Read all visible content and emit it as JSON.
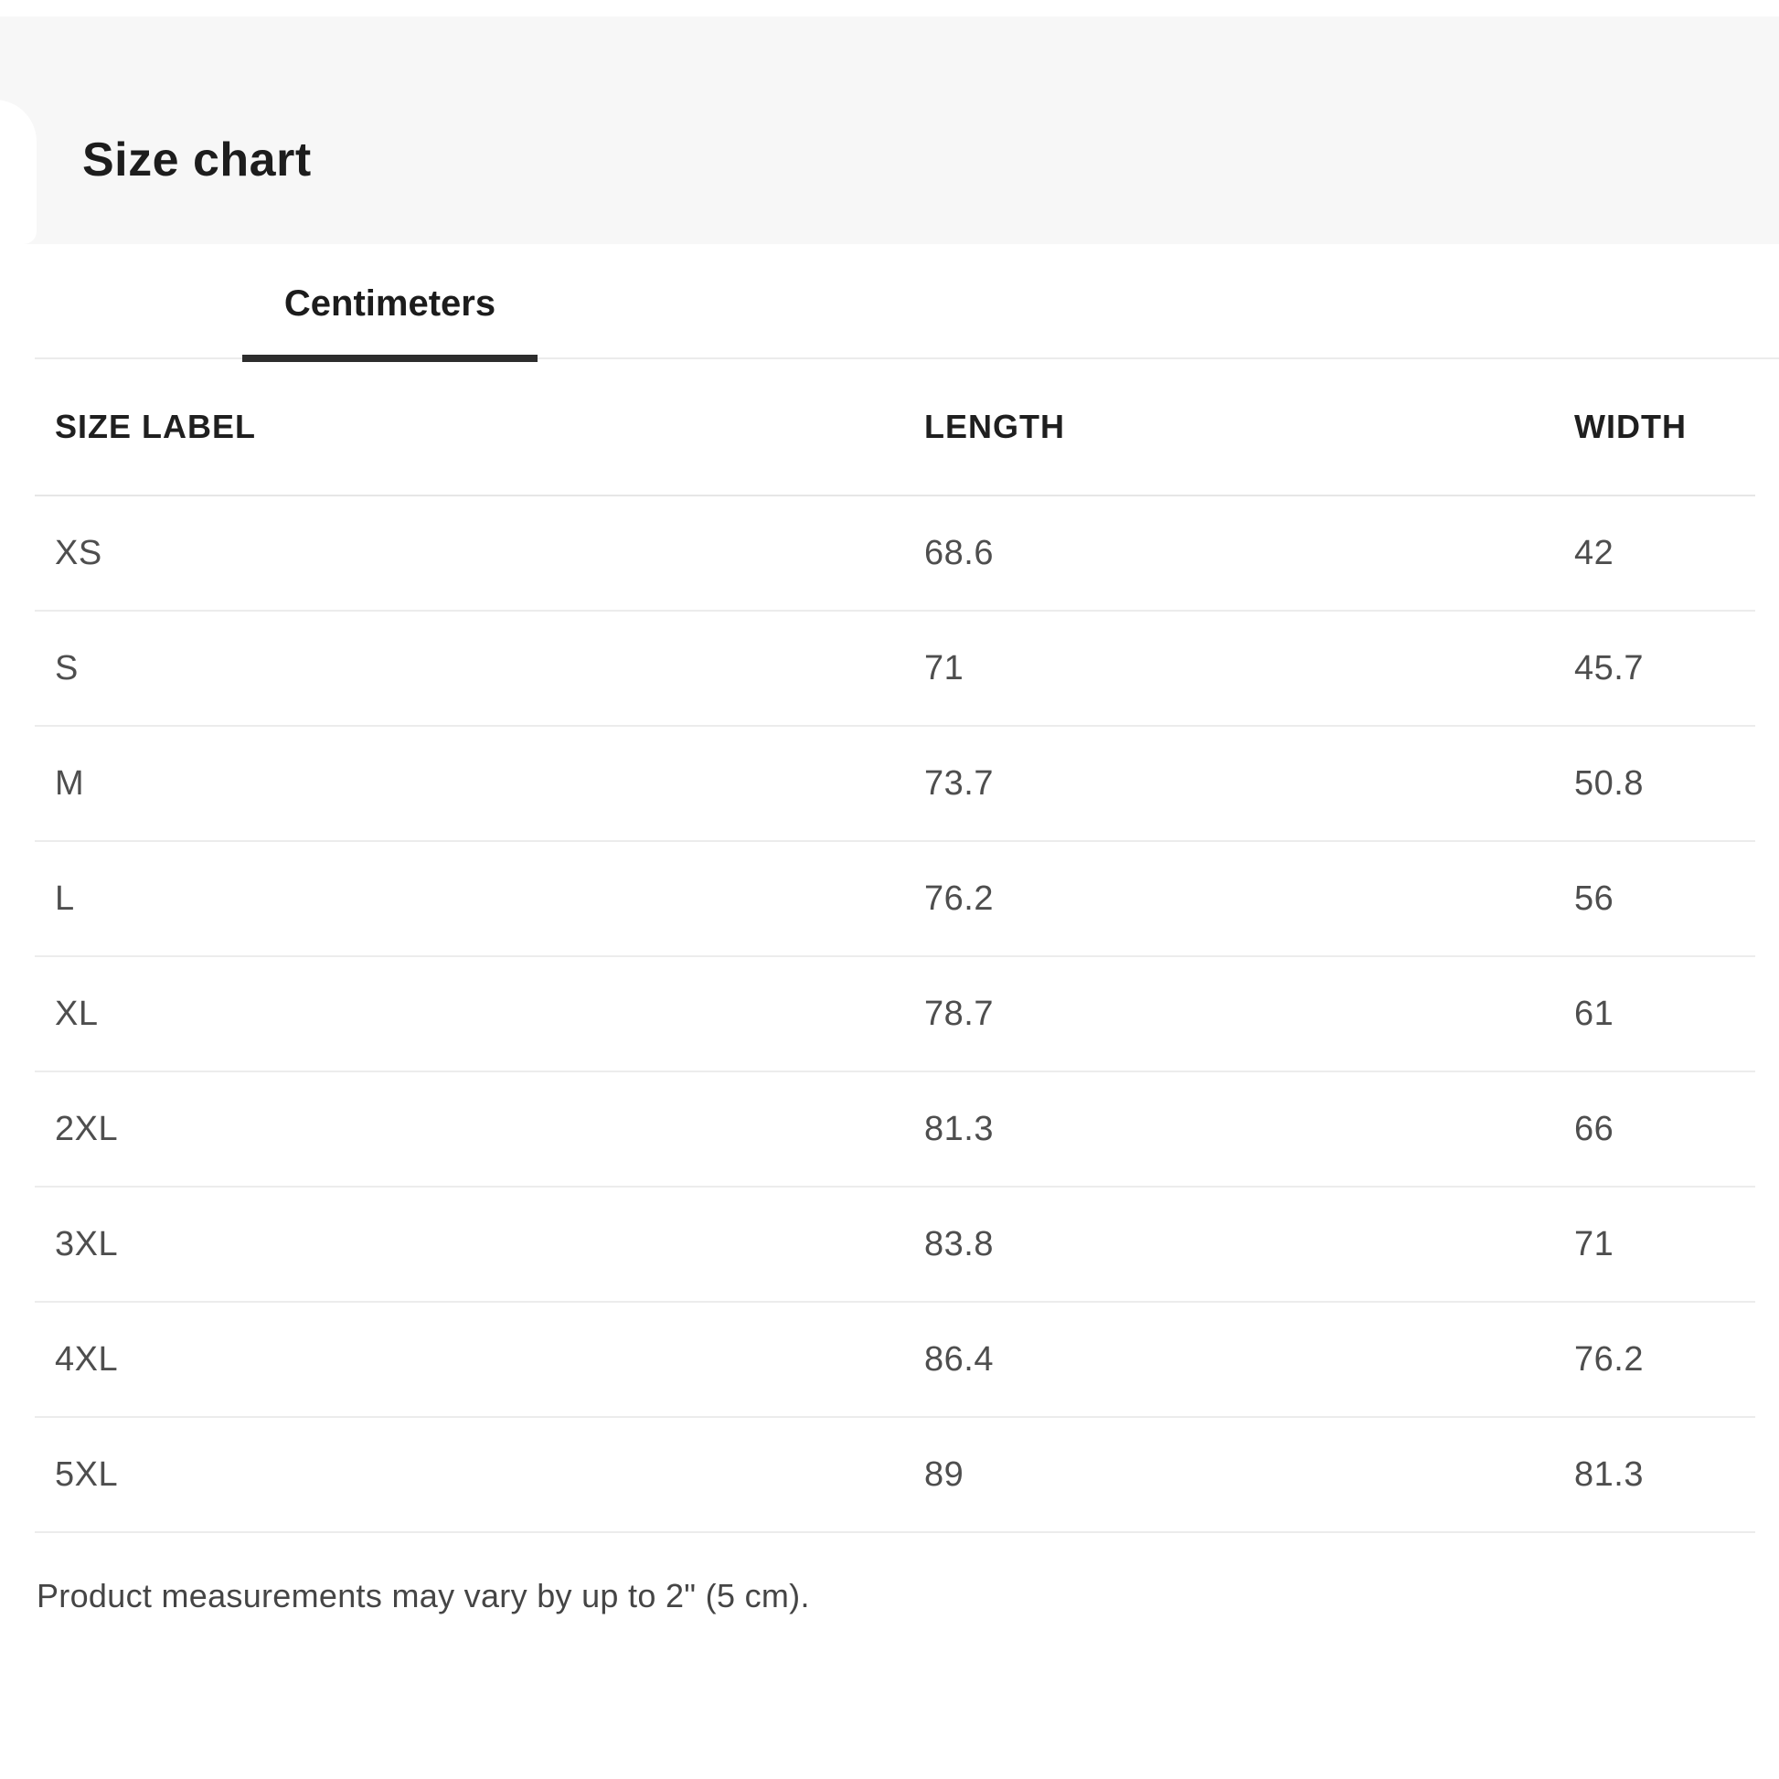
{
  "page": {
    "title": "Size chart"
  },
  "tabs": {
    "active_label": "Centimeters"
  },
  "table": {
    "columns": [
      "SIZE LABEL",
      "LENGTH",
      "WIDTH"
    ],
    "rows": [
      {
        "size": "XS",
        "length": "68.6",
        "width": "42"
      },
      {
        "size": "S",
        "length": "71",
        "width": "45.7"
      },
      {
        "size": "M",
        "length": "73.7",
        "width": "50.8"
      },
      {
        "size": "L",
        "length": "76.2",
        "width": "56"
      },
      {
        "size": "XL",
        "length": "78.7",
        "width": "61"
      },
      {
        "size": "2XL",
        "length": "81.3",
        "width": "66"
      },
      {
        "size": "3XL",
        "length": "83.8",
        "width": "71"
      },
      {
        "size": "4XL",
        "length": "86.4",
        "width": "76.2"
      },
      {
        "size": "5XL",
        "length": "89",
        "width": "81.3"
      }
    ]
  },
  "note": "Product measurements may vary by up to 2\" (5 cm).",
  "colors": {
    "header_band": "#f7f7f7",
    "title_text": "#1d1d1d",
    "tab_underline": "#2d2d2d",
    "divider": "#ececec",
    "body_text": "#4e4e4e"
  }
}
